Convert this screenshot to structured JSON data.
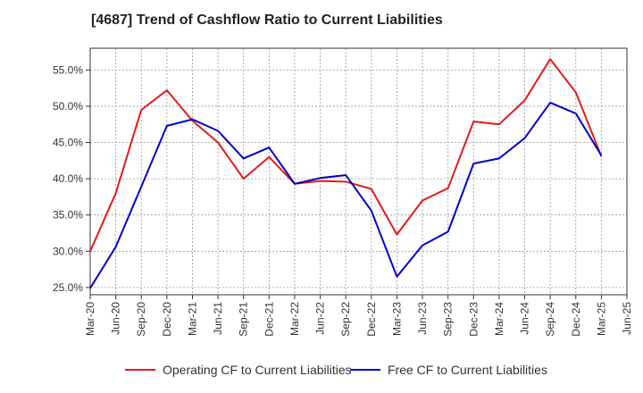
{
  "chart_data": {
    "type": "line",
    "title": "[4687]  Trend of Cashflow Ratio to Current Liabilities",
    "xlabel": "",
    "ylabel": "",
    "x": [
      "Mar-20",
      "Jun-20",
      "Sep-20",
      "Dec-20",
      "Mar-21",
      "Jun-21",
      "Sep-21",
      "Dec-21",
      "Mar-22",
      "Jun-22",
      "Sep-22",
      "Dec-22",
      "Mar-23",
      "Jun-23",
      "Sep-23",
      "Dec-23",
      "Mar-24",
      "Jun-24",
      "Sep-24",
      "Dec-24",
      "Mar-25",
      "Jun-25"
    ],
    "ylim": [
      24.0,
      58.0
    ],
    "yticks": [
      25.0,
      30.0,
      35.0,
      40.0,
      45.0,
      50.0,
      55.0
    ],
    "ytick_labels": [
      "25.0%",
      "30.0%",
      "35.0%",
      "40.0%",
      "45.0%",
      "50.0%",
      "55.0%"
    ],
    "grid": true,
    "legend": "bottom",
    "series": [
      {
        "name": "Operating CF to Current Liabilities",
        "color": "#e41a1c",
        "values": [
          30.0,
          38.0,
          49.5,
          52.2,
          48.0,
          45.0,
          40.0,
          43.0,
          39.3,
          39.7,
          39.6,
          38.6,
          32.3,
          37.0,
          38.7,
          47.9,
          47.5,
          50.8,
          56.5,
          51.9,
          43.1,
          null
        ]
      },
      {
        "name": "Free CF to Current Liabilities",
        "color": "#0000cc",
        "values": [
          24.9,
          30.6,
          38.9,
          47.3,
          48.2,
          46.6,
          42.8,
          44.3,
          39.3,
          40.1,
          40.5,
          35.6,
          26.5,
          30.8,
          32.7,
          42.1,
          42.8,
          45.6,
          50.5,
          49.0,
          43.2,
          null
        ]
      }
    ]
  }
}
